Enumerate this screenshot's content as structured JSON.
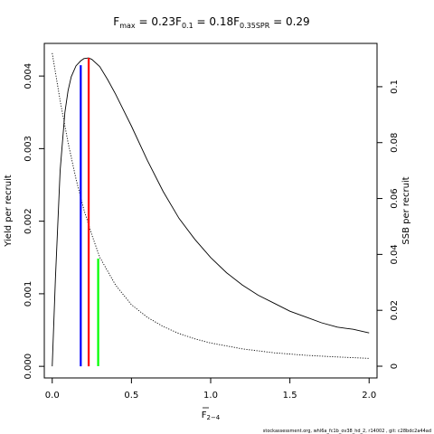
{
  "chart_data": {
    "type": "line",
    "title_parts": [
      {
        "main": "F",
        "sub": "max",
        "rest": " = 0.23"
      },
      {
        "main": "F",
        "sub": "0.1",
        "rest": " = 0.18"
      },
      {
        "main": "F",
        "sub": "0.35SPR",
        "rest": " = 0.29"
      }
    ],
    "xlabel": {
      "main": "F",
      "sub": "2−4"
    },
    "ylabel_left": "Yield per recruit",
    "ylabel_right": "SSB per recruit",
    "xlim": [
      -0.05,
      2.05
    ],
    "ylim_left": [
      -0.00016,
      0.00445
    ],
    "ylim_right": [
      -0.0042,
      0.1155
    ],
    "x_ticks": [
      0,
      0.5,
      1,
      1.5,
      2
    ],
    "x_tick_labels": [
      "0.0",
      "0.5",
      "1.0",
      "1.5",
      "2.0"
    ],
    "y_left_ticks": [
      0,
      0.001,
      0.002,
      0.003,
      0.004
    ],
    "y_left_tick_labels": [
      "0.000",
      "0.001",
      "0.002",
      "0.003",
      "0.004"
    ],
    "y_right_ticks": [
      0,
      0.02,
      0.04,
      0.06,
      0.08,
      0.1
    ],
    "y_right_tick_labels": [
      "0",
      "0.02",
      "0.04",
      "0.06",
      "0.08",
      "0.1"
    ],
    "series": [
      {
        "axis": "left",
        "style": "solid",
        "color": "#000000",
        "x": [
          0,
          0.02,
          0.05,
          0.08,
          0.1,
          0.12,
          0.15,
          0.18,
          0.2,
          0.23,
          0.25,
          0.3,
          0.35,
          0.4,
          0.5,
          0.6,
          0.7,
          0.8,
          0.9,
          1.0,
          1.1,
          1.2,
          1.3,
          1.4,
          1.5,
          1.6,
          1.7,
          1.8,
          1.9,
          2.0
        ],
        "y": [
          0,
          0.0012,
          0.0027,
          0.0035,
          0.0038,
          0.00399,
          0.00414,
          0.00421,
          0.00424,
          0.00425,
          0.00423,
          0.00413,
          0.00395,
          0.00375,
          0.00331,
          0.00284,
          0.00241,
          0.00204,
          0.00175,
          0.0015,
          0.00129,
          0.00112,
          0.00098,
          0.00087,
          0.00076,
          0.00068,
          0.0006,
          0.00054,
          0.00051,
          0.00046
        ]
      },
      {
        "axis": "right",
        "style": "dotted",
        "color": "#000000",
        "x": [
          0,
          0.05,
          0.1,
          0.15,
          0.2,
          0.25,
          0.3,
          0.4,
          0.5,
          0.6,
          0.7,
          0.8,
          0.9,
          1.0,
          1.2,
          1.4,
          1.6,
          1.8,
          2.0
        ],
        "y": [
          0.112,
          0.095,
          0.08,
          0.067,
          0.056,
          0.047,
          0.039,
          0.029,
          0.022,
          0.0175,
          0.0142,
          0.0117,
          0.0098,
          0.0083,
          0.0062,
          0.0048,
          0.0039,
          0.0033,
          0.0028
        ]
      }
    ],
    "reference_lines": [
      {
        "label": "F0.1",
        "x": 0.18,
        "axis": "left",
        "y_top": 0.00415,
        "color": "#0000ff"
      },
      {
        "label": "Fmax",
        "x": 0.23,
        "axis": "left",
        "y_top": 0.00425,
        "color": "#ff0000"
      },
      {
        "label": "F0.35SPR",
        "x": 0.29,
        "axis": "right",
        "y_top": 0.0385,
        "color": "#00ff00"
      }
    ]
  },
  "footnote": "stockassessment.org, whl6a_fc1b_ov38_hd_2, r14002 , git: c28bdc2a44ad"
}
